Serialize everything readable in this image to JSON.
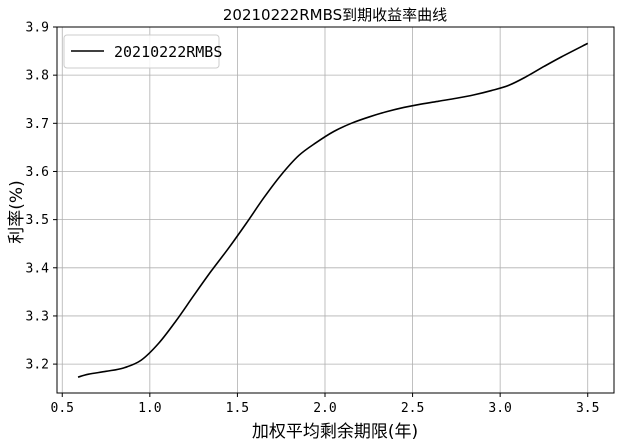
{
  "chart_data": {
    "type": "line",
    "title": "20210222RMBS到期收益率曲线",
    "xlabel": "加权平均剩余期限(年)",
    "ylabel": "利率(%)",
    "xlim": [
      0.47,
      3.65
    ],
    "ylim": [
      3.14,
      3.9
    ],
    "xticks": [
      0.5,
      1.0,
      1.5,
      2.0,
      2.5,
      3.0,
      3.5
    ],
    "yticks": [
      3.2,
      3.3,
      3.4,
      3.5,
      3.6,
      3.7,
      3.8,
      3.9
    ],
    "xtick_labels": [
      "0.5",
      "1.0",
      "1.5",
      "2.0",
      "2.5",
      "3.0",
      "3.5"
    ],
    "ytick_labels": [
      "3.2",
      "3.3",
      "3.4",
      "3.5",
      "3.6",
      "3.7",
      "3.8",
      "3.9"
    ],
    "grid": true,
    "legend_position": "top-left",
    "series": [
      {
        "name": "20210222RMBS",
        "color": "#000000",
        "x": [
          0.59,
          0.65,
          0.75,
          0.85,
          0.95,
          1.05,
          1.15,
          1.25,
          1.35,
          1.45,
          1.55,
          1.65,
          1.75,
          1.85,
          1.95,
          2.05,
          2.15,
          2.25,
          2.35,
          2.45,
          2.55,
          2.65,
          2.75,
          2.85,
          2.95,
          3.05,
          3.15,
          3.25,
          3.35,
          3.5
        ],
        "y": [
          3.173,
          3.179,
          3.185,
          3.192,
          3.208,
          3.243,
          3.29,
          3.342,
          3.393,
          3.441,
          3.492,
          3.545,
          3.593,
          3.633,
          3.66,
          3.683,
          3.7,
          3.713,
          3.724,
          3.733,
          3.74,
          3.746,
          3.752,
          3.759,
          3.768,
          3.779,
          3.797,
          3.818,
          3.838,
          3.866
        ]
      }
    ]
  }
}
